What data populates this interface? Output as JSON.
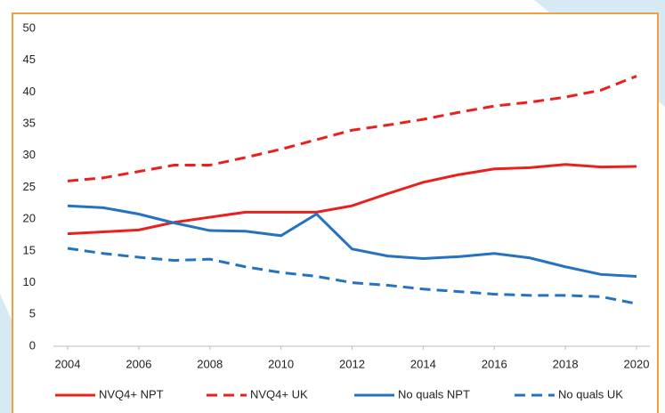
{
  "chart_data": {
    "type": "line",
    "x": [
      2004,
      2005,
      2006,
      2007,
      2008,
      2009,
      2010,
      2011,
      2012,
      2013,
      2014,
      2015,
      2016,
      2017,
      2018,
      2019,
      2020
    ],
    "series": [
      {
        "name": "NVQ4+ NPT",
        "color": "#e8201e",
        "style": "solid",
        "values": [
          17.7,
          18,
          18.3,
          19.5,
          20.3,
          21.1,
          21.1,
          21.1,
          22.1,
          24,
          25.8,
          27,
          27.9,
          28.1,
          28.6,
          28.2,
          28.3
        ]
      },
      {
        "name": "NVQ4+ UK",
        "color": "#e8201e",
        "style": "dashed",
        "values": [
          26,
          26.5,
          27.5,
          28.5,
          28.5,
          29.7,
          31,
          32.5,
          34,
          34.8,
          35.7,
          36.8,
          37.8,
          38.4,
          39.2,
          40.3,
          42.5
        ]
      },
      {
        "name": "No quals NPT",
        "color": "#2472c0",
        "style": "solid",
        "values": [
          22.1,
          21.8,
          20.8,
          19.4,
          18.2,
          18.1,
          17.4,
          20.8,
          15.3,
          14.2,
          13.8,
          14.1,
          14.6,
          13.9,
          12.5,
          11.3,
          11
        ]
      },
      {
        "name": "No quals UK",
        "color": "#2472c0",
        "style": "dashed",
        "values": [
          15.4,
          14.6,
          14,
          13.5,
          13.7,
          12.5,
          11.6,
          11,
          10,
          9.6,
          9,
          8.6,
          8.2,
          8,
          8,
          7.8,
          6.7
        ]
      }
    ],
    "xlim": [
      2004,
      2020
    ],
    "xticks": [
      2004,
      2006,
      2008,
      2010,
      2012,
      2014,
      2016,
      2018,
      2020
    ],
    "ylim": [
      0,
      50
    ],
    "yticks": [
      0,
      5,
      10,
      15,
      20,
      25,
      30,
      35,
      40,
      45,
      50
    ],
    "grid": false,
    "legend": "bottom"
  }
}
